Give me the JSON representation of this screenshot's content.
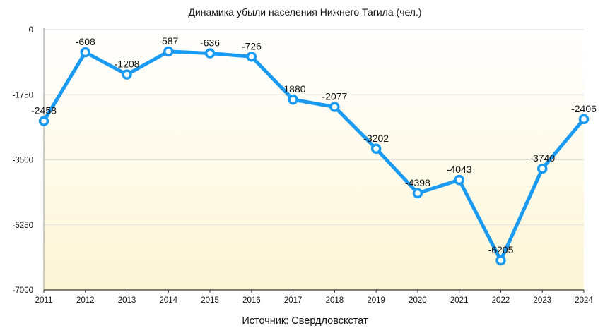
{
  "chart_data": {
    "type": "line",
    "title": "Динамика убыли населения Нижнего Тагила (чел.)",
    "source": "Источник: Свердловскстат",
    "xlabel": "",
    "ylabel": "",
    "categories": [
      "2011",
      "2012",
      "2013",
      "2014",
      "2015",
      "2016",
      "2017",
      "2018",
      "2019",
      "2020",
      "2021",
      "2022",
      "2023",
      "2024"
    ],
    "values": [
      -2458,
      -608,
      -1208,
      -587,
      -636,
      -726,
      -1880,
      -2077,
      -3202,
      -4398,
      -4043,
      -6205,
      -3740,
      -2406
    ],
    "ylim": [
      -7000,
      0
    ],
    "yticks": [
      0,
      -1750,
      -3500,
      -5250,
      -7000
    ],
    "ytick_labels": [
      "0",
      "-1750",
      "-3500",
      "-5250",
      "-7000"
    ],
    "data_labels": [
      "-2458",
      "-608",
      "-1208",
      "-587",
      "-636",
      "-726",
      "-1880",
      "-2077",
      "-3202",
      "-4398",
      "-4043",
      "-6205",
      "-3740",
      "-2406"
    ],
    "grid": true,
    "line_color": "#1a9af0",
    "background_gradient": [
      "#ffffff",
      "#fdf6d6"
    ]
  }
}
